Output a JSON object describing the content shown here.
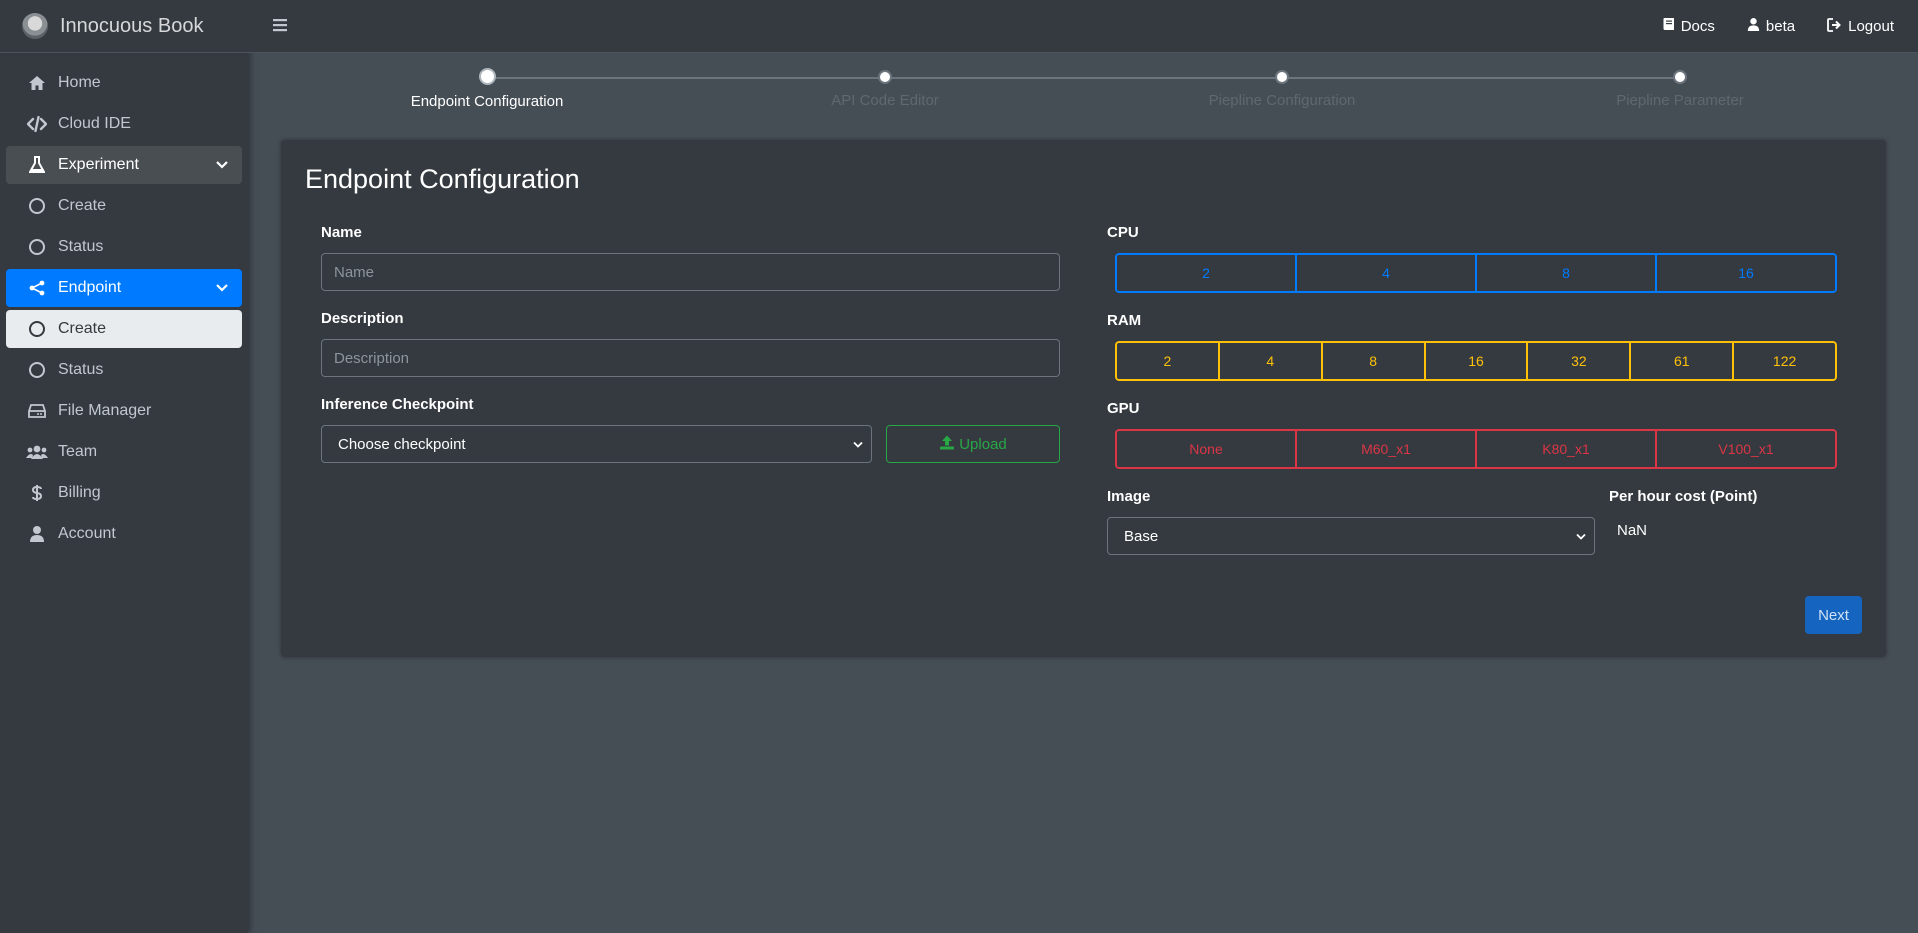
{
  "brand": {
    "name": "Innocuous Book"
  },
  "sidebar": {
    "items": [
      {
        "label": "Home",
        "icon": "home-icon"
      },
      {
        "label": "Cloud IDE",
        "icon": "code-icon"
      },
      {
        "label": "Experiment",
        "icon": "flask-icon"
      },
      {
        "label": "Create",
        "icon": "circle-icon"
      },
      {
        "label": "Status",
        "icon": "circle-icon"
      },
      {
        "label": "Endpoint",
        "icon": "share-icon"
      },
      {
        "label": "Create",
        "icon": "circle-icon"
      },
      {
        "label": "Status",
        "icon": "circle-icon"
      },
      {
        "label": "File Manager",
        "icon": "hdd-icon"
      },
      {
        "label": "Team",
        "icon": "users-icon"
      },
      {
        "label": "Billing",
        "icon": "dollar-icon"
      },
      {
        "label": "Account",
        "icon": "user-icon"
      }
    ]
  },
  "topbar": {
    "docs": "Docs",
    "user": "beta",
    "logout": "Logout"
  },
  "stepper": {
    "steps": [
      "Endpoint Configuration",
      "API Code Editor",
      "Piepline Configuration",
      "Piepline Parameter"
    ],
    "active_index": 0
  },
  "form": {
    "title": "Endpoint Configuration",
    "name_label": "Name",
    "name_placeholder": "Name",
    "description_label": "Description",
    "description_placeholder": "Description",
    "checkpoint_label": "Inference Checkpoint",
    "checkpoint_selected": "Choose checkpoint",
    "upload_label": "Upload",
    "cpu_label": "CPU",
    "cpu_options": [
      "2",
      "4",
      "8",
      "16"
    ],
    "ram_label": "RAM",
    "ram_options": [
      "2",
      "4",
      "8",
      "16",
      "32",
      "61",
      "122"
    ],
    "gpu_label": "GPU",
    "gpu_options": [
      "None",
      "M60_x1",
      "K80_x1",
      "V100_x1"
    ],
    "image_label": "Image",
    "image_selected": "Base",
    "cost_label": "Per hour cost (Point)",
    "cost_value": "NaN",
    "next_label": "Next"
  },
  "colors": {
    "sidebar_bg": "#343a40",
    "content_bg": "#454d55",
    "primary": "#007bff",
    "warning": "#ffc107",
    "danger": "#dc3545",
    "success": "#28a745"
  }
}
